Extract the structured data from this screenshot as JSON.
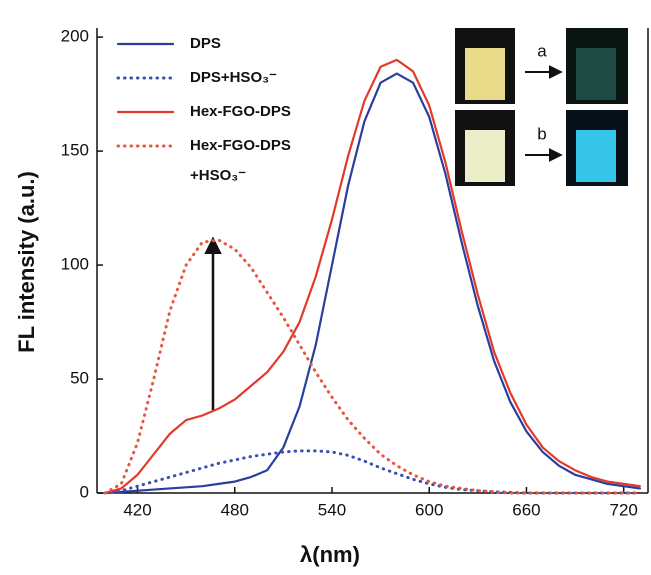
{
  "chart_data": {
    "type": "line",
    "xlabel": "λ(nm)",
    "ylabel": "FL intensity (a.u.)",
    "x": [
      400,
      410,
      420,
      430,
      440,
      450,
      460,
      470,
      480,
      490,
      500,
      510,
      520,
      530,
      540,
      550,
      560,
      570,
      580,
      590,
      600,
      610,
      620,
      630,
      640,
      650,
      660,
      670,
      680,
      690,
      700,
      710,
      720,
      730
    ],
    "series": [
      {
        "name": "DPS",
        "color": "#2a3f9c",
        "style": "solid",
        "values": [
          0,
          0.5,
          1,
          1.5,
          2,
          2.5,
          3,
          4,
          5,
          7,
          10,
          20,
          38,
          65,
          100,
          135,
          163,
          180,
          184,
          180,
          165,
          140,
          110,
          82,
          58,
          40,
          27,
          18,
          12,
          8,
          6,
          4,
          3,
          2
        ]
      },
      {
        "name": "DPS+HSO₃⁻",
        "color": "#3a4fb0",
        "style": "dotted",
        "values": [
          0,
          1,
          3,
          5,
          7,
          9,
          11,
          13,
          14.5,
          16,
          17,
          18,
          18.5,
          18.5,
          18,
          16.5,
          14,
          11,
          8.5,
          6,
          4,
          2.5,
          1.5,
          1,
          0.5,
          0.3,
          0,
          0,
          0,
          0,
          0,
          0,
          0,
          0
        ]
      },
      {
        "name": "Hex-FGO-DPS",
        "color": "#e23a2a",
        "style": "solid",
        "values": [
          0,
          2,
          8,
          17,
          26,
          32,
          34,
          37,
          41,
          47,
          53,
          62,
          75,
          95,
          120,
          148,
          172,
          187,
          190,
          185,
          170,
          145,
          115,
          87,
          62,
          44,
          30,
          20,
          14,
          10,
          7,
          5,
          4,
          3
        ]
      },
      {
        "name": "Hex-FGO-DPS +HSO₃⁻",
        "color": "#e8553e",
        "style": "dotted",
        "values": [
          0,
          4,
          22,
          50,
          80,
          100,
          110,
          111,
          107,
          99,
          88,
          77,
          65,
          53,
          42,
          32,
          24,
          17,
          12,
          8,
          5,
          3,
          2,
          1,
          0.5,
          0,
          0,
          0,
          0,
          0,
          0,
          0,
          0,
          0
        ]
      }
    ],
    "xlim": [
      395,
      735
    ],
    "ylim": [
      0,
      204
    ],
    "xticks": [
      420,
      480,
      540,
      600,
      660,
      720
    ],
    "yticks": [
      0,
      50,
      100,
      150,
      200
    ],
    "insets": [
      {
        "label": "a"
      },
      {
        "label": "b"
      }
    ]
  }
}
